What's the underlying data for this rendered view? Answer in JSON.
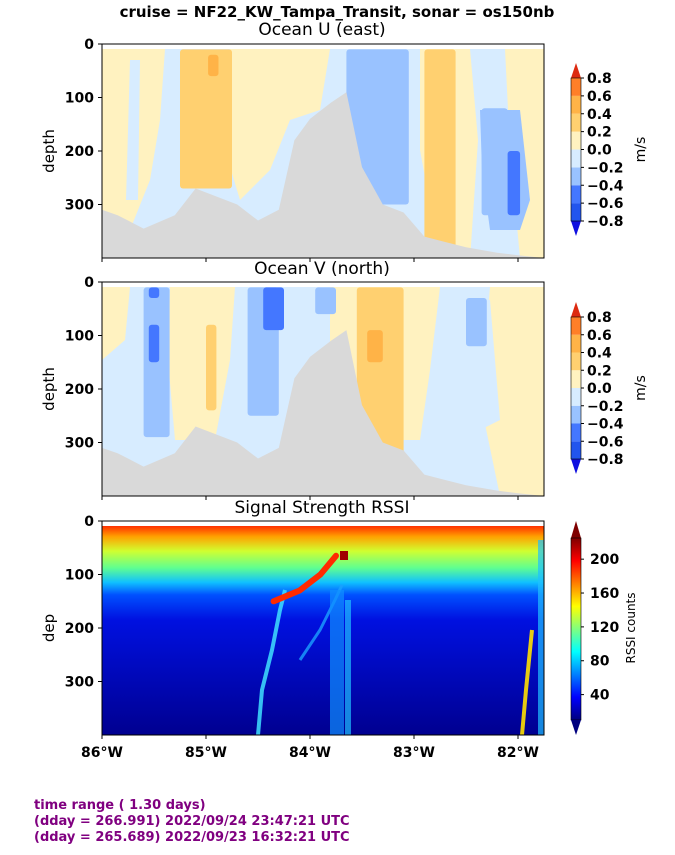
{
  "suptitle": "cruise = NF22_KW_Tampa_Transit,  sonar = os150nb",
  "footer": {
    "line1": "time range ( 1.30 days)",
    "line2": "(dday = 266.991) 2022/09/24 23:47:21 UTC",
    "line3": "(dday = 265.689) 2022/09/23 16:32:21 UTC"
  },
  "colors": {
    "ocean_levels": [
      "#1010e0",
      "#2255ee",
      "#4477ff",
      "#99c2ff",
      "#d7ecff",
      "#fff2c0",
      "#ffd070",
      "#ffb347",
      "#ff7f27",
      "#dd2a10"
    ],
    "nodata": "#d9d9d9",
    "footer_text": "#800080"
  },
  "chart_data": [
    {
      "type": "heatmap",
      "title": "Ocean U (east)",
      "ylabel": "depth",
      "xlim": [
        -86.0,
        -81.75
      ],
      "ylim": [
        400,
        0
      ],
      "xticks": [
        -86,
        -85,
        -84,
        -83,
        -82
      ],
      "yticks": [
        0,
        100,
        200,
        300
      ],
      "yticklabels": [
        "0",
        "100",
        "200",
        "300"
      ],
      "colorbar": {
        "label": "m/s",
        "levels": [
          -0.8,
          -0.6,
          -0.4,
          -0.2,
          0.0,
          0.2,
          0.4,
          0.6,
          0.8
        ],
        "ticklabels": [
          "−0.8",
          "−0.6",
          "−0.4",
          "−0.2",
          "0.0",
          "0.2",
          "0.4",
          "0.6",
          "0.8"
        ]
      },
      "bottom_profile": [
        {
          "lon": -86.0,
          "depth": 310
        },
        {
          "lon": -85.85,
          "depth": 320
        },
        {
          "lon": -85.6,
          "depth": 345
        },
        {
          "lon": -85.3,
          "depth": 320
        },
        {
          "lon": -85.1,
          "depth": 270
        },
        {
          "lon": -84.9,
          "depth": 285
        },
        {
          "lon": -84.7,
          "depth": 300
        },
        {
          "lon": -84.5,
          "depth": 330
        },
        {
          "lon": -84.3,
          "depth": 310
        },
        {
          "lon": -84.15,
          "depth": 180
        },
        {
          "lon": -84.0,
          "depth": 140
        },
        {
          "lon": -83.8,
          "depth": 110
        },
        {
          "lon": -83.65,
          "depth": 90
        },
        {
          "lon": -83.5,
          "depth": 230
        },
        {
          "lon": -83.3,
          "depth": 300
        },
        {
          "lon": -83.1,
          "depth": 315
        },
        {
          "lon": -82.9,
          "depth": 360
        },
        {
          "lon": -82.7,
          "depth": 370
        },
        {
          "lon": -82.5,
          "depth": 380
        },
        {
          "lon": -82.2,
          "depth": 390
        },
        {
          "lon": -82.0,
          "depth": 395
        },
        {
          "lon": -81.75,
          "depth": 400
        }
      ],
      "features": [
        {
          "lon_from": -85.25,
          "lon_to": -84.75,
          "depth_from": 10,
          "depth_to": 270,
          "value": 0.3
        },
        {
          "lon_from": -84.98,
          "lon_to": -84.88,
          "depth_from": 20,
          "depth_to": 60,
          "value": 0.5
        },
        {
          "lon_from": -83.5,
          "lon_to": -83.3,
          "depth_from": 60,
          "depth_to": 210,
          "value": -0.5
        },
        {
          "lon_from": -83.65,
          "lon_to": -83.05,
          "depth_from": 10,
          "depth_to": 300,
          "value": -0.3
        },
        {
          "lon_from": -82.9,
          "lon_to": -82.6,
          "depth_from": 10,
          "depth_to": 390,
          "value": 0.3
        },
        {
          "lon_from": -82.35,
          "lon_to": -82.1,
          "depth_from": 120,
          "depth_to": 320,
          "value": -0.3
        },
        {
          "lon_from": -82.1,
          "lon_to": -81.98,
          "depth_from": 200,
          "depth_to": 320,
          "value": -0.5
        },
        {
          "lon_from": -84.58,
          "lon_to": -84.5,
          "depth_from": 365,
          "depth_to": 400,
          "value": -0.5
        }
      ]
    },
    {
      "type": "heatmap",
      "title": "Ocean V (north)",
      "ylabel": "depth",
      "xlim": [
        -86.0,
        -81.75
      ],
      "ylim": [
        400,
        0
      ],
      "xticks": [
        -86,
        -85,
        -84,
        -83,
        -82
      ],
      "yticks": [
        0,
        100,
        200,
        300
      ],
      "yticklabels": [
        "0",
        "100",
        "200",
        "300"
      ],
      "colorbar": {
        "label": "m/s",
        "levels": [
          -0.8,
          -0.6,
          -0.4,
          -0.2,
          0.0,
          0.2,
          0.4,
          0.6,
          0.8
        ],
        "ticklabels": [
          "−0.8",
          "−0.6",
          "−0.4",
          "−0.2",
          "0.0",
          "0.2",
          "0.4",
          "0.6",
          "0.8"
        ]
      },
      "features": [
        {
          "lon_from": -85.6,
          "lon_to": -85.35,
          "depth_from": 10,
          "depth_to": 290,
          "value": -0.3
        },
        {
          "lon_from": -85.55,
          "lon_to": -85.45,
          "depth_from": 80,
          "depth_to": 150,
          "value": -0.5
        },
        {
          "lon_from": -85.55,
          "lon_to": -85.45,
          "depth_from": 10,
          "depth_to": 30,
          "value": -0.5
        },
        {
          "lon_from": -85.0,
          "lon_to": -84.9,
          "depth_from": 80,
          "depth_to": 240,
          "value": 0.3
        },
        {
          "lon_from": -84.6,
          "lon_to": -84.3,
          "depth_from": 10,
          "depth_to": 250,
          "value": -0.3
        },
        {
          "lon_from": -84.45,
          "lon_to": -84.25,
          "depth_from": 10,
          "depth_to": 90,
          "value": -0.5
        },
        {
          "lon_from": -83.95,
          "lon_to": -83.75,
          "depth_from": 10,
          "depth_to": 60,
          "value": -0.3
        },
        {
          "lon_from": -83.55,
          "lon_to": -83.1,
          "depth_from": 10,
          "depth_to": 360,
          "value": 0.3
        },
        {
          "lon_from": -83.45,
          "lon_to": -83.3,
          "depth_from": 90,
          "depth_to": 150,
          "value": 0.5
        },
        {
          "lon_from": -82.5,
          "lon_to": -82.3,
          "depth_from": 30,
          "depth_to": 120,
          "value": -0.3
        },
        {
          "lon_from": -84.58,
          "lon_to": -84.5,
          "depth_from": 370,
          "depth_to": 400,
          "value": 0.7
        }
      ]
    },
    {
      "type": "heatmap",
      "title": "Signal Strength RSSI",
      "ylabel": "dep",
      "xlim": [
        -86.0,
        -81.75
      ],
      "ylim": [
        400,
        0
      ],
      "xticks": [
        -86,
        -85,
        -84,
        -83,
        -82
      ],
      "xticklabels": [
        "86°W",
        "85°W",
        "84°W",
        "83°W",
        "82°W"
      ],
      "yticks": [
        0,
        100,
        200,
        300
      ],
      "yticklabels": [
        "0",
        "100",
        "200",
        "300"
      ],
      "colorbar": {
        "label": "RSSI counts",
        "range": [
          10,
          225
        ],
        "ticks": [
          40,
          80,
          120,
          160,
          200
        ],
        "ticklabels": [
          "40",
          "80",
          "120",
          "160",
          "200"
        ]
      },
      "profile_rssi_by_depth": [
        {
          "depth": 15,
          "rssi": 210
        },
        {
          "depth": 25,
          "rssi": 170
        },
        {
          "depth": 40,
          "rssi": 140
        },
        {
          "depth": 60,
          "rssi": 110
        },
        {
          "depth": 80,
          "rssi": 85
        },
        {
          "depth": 100,
          "rssi": 70
        },
        {
          "depth": 130,
          "rssi": 45
        },
        {
          "depth": 180,
          "rssi": 35
        },
        {
          "depth": 400,
          "rssi": 25
        }
      ],
      "scattering_layer": [
        {
          "lon": -84.35,
          "depth": 150,
          "rssi": 200
        },
        {
          "lon": -84.1,
          "depth": 130,
          "rssi": 180
        },
        {
          "lon": -83.9,
          "depth": 100,
          "rssi": 190
        },
        {
          "lon": -83.75,
          "depth": 65,
          "rssi": 220
        }
      ]
    }
  ]
}
